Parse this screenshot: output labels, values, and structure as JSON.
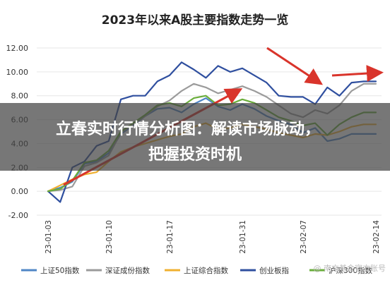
{
  "chart_data": {
    "type": "line",
    "title": "2023年以来A股主要指数走势一览",
    "overlay_banner": "立春实时行情分析图：解读市场脉动，把握投资时机",
    "watermark": "@ 南方基金官方账号",
    "ylim": [
      -2,
      12
    ],
    "y_ticks": [
      "-2.00",
      "0.00",
      "2.00",
      "4.00",
      "6.00",
      "8.00",
      "10.00",
      "12.00"
    ],
    "x_ticks": [
      "23-01-03",
      "23-01-10",
      "23-01-17",
      "23-01-31",
      "23-02-07",
      "23-02-14"
    ],
    "legend_position": "bottom",
    "series": [
      {
        "name": "上证50指数",
        "color": "#4f86c6",
        "x": [
          0,
          1,
          2,
          3,
          4,
          5,
          6,
          7,
          8,
          9,
          10,
          11,
          12,
          13,
          14,
          15,
          16,
          17,
          18,
          19,
          20,
          21,
          22,
          23,
          24,
          25,
          26,
          27
        ],
        "values": [
          0,
          0.3,
          0.8,
          2.3,
          2.5,
          3.2,
          4.8,
          5.5,
          6.3,
          6.9,
          7.0,
          6.6,
          7.3,
          7.8,
          7.1,
          6.8,
          7.3,
          6.9,
          6.3,
          5.9,
          5.6,
          4.9,
          5.3,
          4.2,
          4.4,
          4.8,
          4.8,
          4.8
        ]
      },
      {
        "name": "深证成份指数",
        "color": "#9b9b9b",
        "x": [
          0,
          1,
          2,
          3,
          4,
          5,
          6,
          7,
          8,
          9,
          10,
          11,
          12,
          13,
          14,
          15,
          16,
          17,
          18,
          19,
          20,
          21,
          22,
          23,
          24,
          25,
          26,
          27
        ],
        "values": [
          0,
          0.1,
          0.4,
          2.1,
          2.4,
          3.0,
          4.9,
          5.6,
          6.3,
          7.1,
          7.6,
          8.4,
          9.0,
          8.7,
          8.2,
          8.5,
          8.8,
          8.4,
          7.9,
          7.2,
          6.5,
          6.2,
          6.8,
          6.5,
          7.2,
          8.4,
          9.0,
          9.0
        ]
      },
      {
        "name": "上证综合指数",
        "color": "#f0b030",
        "x": [
          0,
          1,
          2,
          3,
          4,
          5,
          6,
          7,
          8,
          9,
          10,
          11,
          12,
          13,
          14,
          15,
          16,
          17,
          18,
          19,
          20,
          21,
          22,
          23,
          24,
          25,
          26,
          27
        ],
        "values": [
          0,
          0.5,
          1.0,
          1.4,
          1.6,
          2.5,
          3.3,
          3.7,
          4.0,
          4.3,
          4.6,
          4.8,
          5.4,
          5.7,
          5.2,
          5.3,
          5.6,
          5.4,
          5.2,
          4.9,
          4.7,
          4.5,
          4.8,
          4.7,
          5.0,
          5.4,
          5.6,
          5.6
        ]
      },
      {
        "name": "创业板指",
        "color": "#2f4f9f",
        "x": [
          0,
          1,
          2,
          3,
          4,
          5,
          6,
          7,
          8,
          9,
          10,
          11,
          12,
          13,
          14,
          15,
          16,
          17,
          18,
          19,
          20,
          21,
          22,
          23,
          24,
          25,
          26,
          27
        ],
        "values": [
          0,
          -0.9,
          2.0,
          2.5,
          3.8,
          4.2,
          7.7,
          8.0,
          8.0,
          9.2,
          9.7,
          10.8,
          10.2,
          9.5,
          10.5,
          10.0,
          10.3,
          9.7,
          9.1,
          8.0,
          7.9,
          7.9,
          7.3,
          8.7,
          8.0,
          9.1,
          9.2,
          9.2
        ]
      },
      {
        "name": "沪深300指数",
        "color": "#6aae3b",
        "x": [
          0,
          1,
          2,
          3,
          4,
          5,
          6,
          7,
          8,
          9,
          10,
          11,
          12,
          13,
          14,
          15,
          16,
          17,
          18,
          19,
          20,
          21,
          22,
          23,
          24,
          25,
          26,
          27
        ],
        "values": [
          0,
          0.2,
          0.9,
          2.4,
          2.6,
          3.4,
          5.0,
          5.7,
          6.4,
          7.2,
          7.4,
          7.1,
          7.8,
          8.0,
          7.2,
          7.3,
          7.7,
          7.4,
          6.8,
          6.2,
          5.9,
          5.5,
          5.7,
          4.7,
          5.6,
          6.2,
          6.6,
          6.6
        ]
      }
    ]
  }
}
